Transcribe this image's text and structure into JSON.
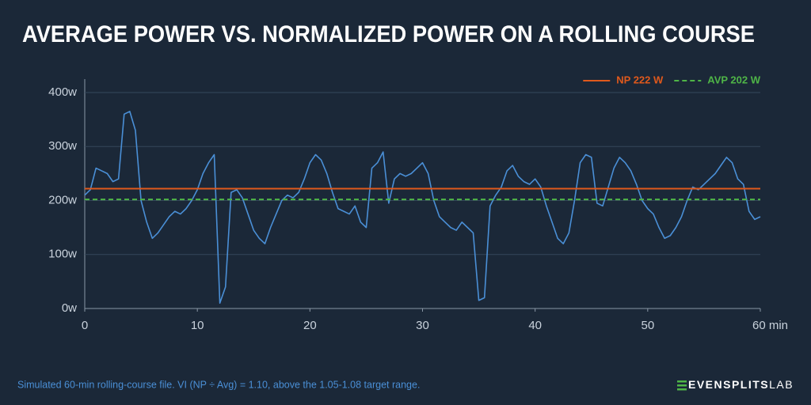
{
  "chart_data": {
    "type": "line",
    "title": "AVERAGE POWER VS. NORMALIZED POWER ON A ROLLING COURSE",
    "x": [
      0,
      0.5,
      1,
      1.5,
      2,
      2.5,
      3,
      3.5,
      4,
      4.5,
      5,
      5.5,
      6,
      6.5,
      7,
      7.5,
      8,
      8.5,
      9,
      9.5,
      10,
      10.5,
      11,
      11.5,
      12,
      12.5,
      13,
      13.5,
      14,
      14.5,
      15,
      15.5,
      16,
      16.5,
      17,
      17.5,
      18,
      18.5,
      19,
      19.5,
      20,
      20.5,
      21,
      21.5,
      22,
      22.5,
      23,
      23.5,
      24,
      24.5,
      25,
      25.5,
      26,
      26.5,
      27,
      27.5,
      28,
      28.5,
      29,
      29.5,
      30,
      30.5,
      31,
      31.5,
      32,
      32.5,
      33,
      33.5,
      34,
      34.5,
      35,
      35.5,
      36,
      36.5,
      37,
      37.5,
      38,
      38.5,
      39,
      39.5,
      40,
      40.5,
      41,
      41.5,
      42,
      42.5,
      43,
      43.5,
      44,
      44.5,
      45,
      45.5,
      46,
      46.5,
      47,
      47.5,
      48,
      48.5,
      49,
      49.5,
      50,
      50.5,
      51,
      51.5,
      52,
      52.5,
      53,
      53.5,
      54,
      54.5,
      55,
      55.5,
      56,
      56.5,
      57,
      57.5,
      58,
      58.5,
      59,
      59.5,
      60
    ],
    "series": [
      {
        "color": "#4a8fd6",
        "values": [
          210,
          220,
          260,
          255,
          250,
          235,
          240,
          360,
          365,
          330,
          200,
          160,
          130,
          140,
          155,
          170,
          180,
          175,
          185,
          200,
          220,
          250,
          270,
          285,
          10,
          40,
          215,
          220,
          205,
          175,
          145,
          130,
          120,
          150,
          175,
          200,
          210,
          205,
          215,
          240,
          270,
          285,
          275,
          250,
          215,
          185,
          180,
          175,
          190,
          160,
          150,
          260,
          270,
          290,
          195,
          240,
          250,
          245,
          250,
          260,
          270,
          250,
          200,
          170,
          160,
          150,
          145,
          160,
          150,
          140,
          15,
          20,
          190,
          210,
          225,
          255,
          265,
          245,
          235,
          230,
          240,
          225,
          190,
          160,
          130,
          120,
          140,
          200,
          270,
          285,
          280,
          195,
          190,
          225,
          260,
          280,
          270,
          255,
          230,
          200,
          185,
          175,
          150,
          130,
          135,
          150,
          170,
          200,
          225,
          220,
          230,
          240,
          250,
          265,
          280,
          270,
          240,
          230,
          180,
          165,
          170
        ]
      }
    ],
    "reference_lines": [
      {
        "name": "NP 222 W",
        "value": 222,
        "color": "#e0591c",
        "dashed": false
      },
      {
        "name": "AVP 202 W",
        "value": 202,
        "color": "#4fb547",
        "dashed": true
      }
    ],
    "xlim": [
      0,
      60
    ],
    "xticks": [
      0,
      10,
      20,
      30,
      40,
      50,
      {
        "value": 60,
        "label": "60 min"
      }
    ],
    "ylim": [
      0,
      400
    ],
    "yticks": [
      {
        "value": 0,
        "label": "0w"
      },
      {
        "value": 100,
        "label": "100w"
      },
      {
        "value": 200,
        "label": "200w"
      },
      {
        "value": 300,
        "label": "300w"
      },
      {
        "value": 400,
        "label": "400w"
      }
    ],
    "grid": true,
    "legend_position": "top-right",
    "footnote": "Simulated 60-min rolling-course file. VI (NP ÷ Avg) = 1.10, above the 1.05-1.08 target range.",
    "brand": [
      "EVENSPLITS",
      "LAB"
    ]
  }
}
